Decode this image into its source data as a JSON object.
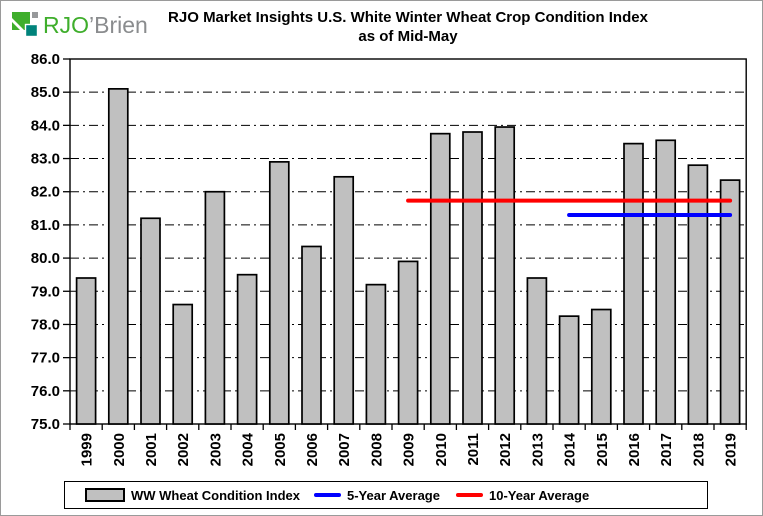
{
  "logo": {
    "name": "RJO'Brien logo",
    "text_primary": "RJO",
    "text_secondary": "’Brien",
    "color_primary": "#3FAE2C",
    "color_secondary": "#8A8C8E",
    "icon_green": "#3FAE2C",
    "icon_teal": "#00837B",
    "icon_gray": "#97999B"
  },
  "title": {
    "line1": "RJO Market Insights U.S. White Winter Wheat Crop Condition Index",
    "line2": "as of Mid-May"
  },
  "chart_data": {
    "type": "bar",
    "title": "RJO Market Insights U.S. White Winter Wheat Crop Condition Index as of Mid-May",
    "categories": [
      "1999",
      "2000",
      "2001",
      "2002",
      "2003",
      "2004",
      "2005",
      "2006",
      "2007",
      "2008",
      "2009",
      "2010",
      "2011",
      "2012",
      "2013",
      "2014",
      "2015",
      "2016",
      "2017",
      "2018",
      "2019"
    ],
    "series": [
      {
        "name": "WW Wheat Condition Index",
        "type": "bar",
        "fill": "#C0C0C0",
        "stroke": "#000000",
        "values": [
          79.4,
          85.1,
          81.2,
          78.6,
          82.0,
          79.5,
          82.9,
          80.35,
          82.45,
          79.2,
          79.9,
          83.75,
          83.8,
          83.95,
          79.4,
          78.25,
          78.45,
          83.45,
          83.55,
          82.8,
          82.35
        ]
      },
      {
        "name": "5-Year Average",
        "type": "line",
        "color": "#0000FF",
        "value": 81.3,
        "start_category": "2014",
        "end_category": "2019"
      },
      {
        "name": "10-Year Average",
        "type": "line",
        "color": "#FF0000",
        "value": 81.73,
        "start_category": "2009",
        "end_category": "2019"
      }
    ],
    "ylim": [
      75.0,
      86.0
    ],
    "ytick_labels": [
      "86.0",
      "85.0",
      "84.0",
      "83.0",
      "82.0",
      "81.0",
      "80.0",
      "79.0",
      "78.0",
      "77.0",
      "76.0",
      "75.0"
    ],
    "grid": "horizontal-dash-dot",
    "axis_color": "#000000",
    "legend_position": "bottom"
  }
}
